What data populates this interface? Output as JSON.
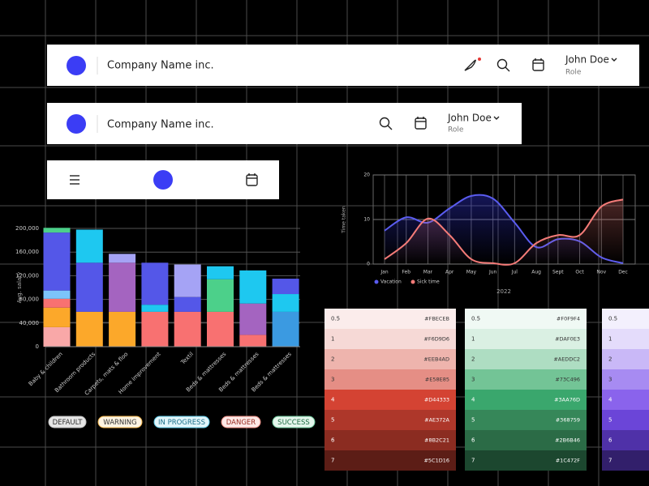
{
  "header_full": {
    "company": "Company Name inc.",
    "user": "John Doe",
    "role": "Role"
  },
  "header_compact": {
    "company": "Company Name inc.",
    "user": "John Doe",
    "role": "Role"
  },
  "chart_data": [
    {
      "type": "stacked_bar",
      "y_label": "Avg. salary",
      "categories": [
        "Baby & children",
        "Bathroom products",
        "Carpets, mats & floo",
        "Home improvement",
        "Textil",
        "Beds & mattresses",
        "Beds & mattresses",
        "Beds & mattresses"
      ],
      "series": [
        {
          "values": [
            33000,
            59000,
            59000,
            59000,
            59000,
            59000,
            20000,
            59000
          ],
          "colors": [
            "#f9a8a8",
            "#fca82a",
            "#fca82a",
            "#f87171",
            "#f87171",
            "#f87171",
            "#f87171",
            "#3b9ae1"
          ]
        },
        {
          "values": [
            33000,
            83000,
            83000,
            12000,
            25000,
            55000,
            53000,
            30000
          ],
          "colors": [
            "#fca82a",
            "#5457e8",
            "#a464c0",
            "#1ec8f0",
            "#5457e8",
            "#4cd08a",
            "#a464c0",
            "#1ec8f0"
          ]
        },
        {
          "values": [
            15000,
            56000,
            15000,
            71000,
            55000,
            22000,
            56000,
            26000
          ],
          "colors": [
            "#f87171",
            "#1ec8f0",
            "#a5a3f5",
            "#5457e8",
            "#a5a3f5",
            "#1ec8f0",
            "#1ec8f0",
            "#5457e8"
          ]
        },
        {
          "values": [
            14000,
            null,
            null,
            null,
            null,
            null,
            null,
            null
          ],
          "colors": [
            "#7cc4fa",
            null,
            null,
            null,
            null,
            null,
            null,
            null
          ]
        },
        {
          "values": [
            98000,
            null,
            null,
            null,
            null,
            null,
            null,
            null
          ],
          "colors": [
            "#5457e8",
            null,
            null,
            null,
            null,
            null,
            null,
            null
          ]
        },
        {
          "values": [
            8000,
            null,
            null,
            null,
            null,
            null,
            null,
            null
          ],
          "colors": [
            "#4cd08a",
            null,
            null,
            null,
            null,
            null,
            null,
            null
          ]
        }
      ],
      "ylim": [
        0,
        200000
      ],
      "yticks": [
        0,
        {
          "value": 40000,
          "label": "40,000"
        },
        {
          "value": 80000,
          "label": "80,000"
        },
        {
          "value": 120000,
          "label": "120,000"
        },
        {
          "value": 160000,
          "label": "160,000"
        },
        {
          "value": 200000,
          "label": "200,000"
        }
      ],
      "grid": true
    },
    {
      "type": "line",
      "y_label": "Time taken",
      "x_label": "2022",
      "categories": [
        "Jan",
        "Feb",
        "Mar",
        "Apr",
        "May",
        "Jun",
        "Jul",
        "Aug",
        "Sept",
        "Oct",
        "Nov",
        "Dec"
      ],
      "series": [
        {
          "name": "Vacation",
          "color": "#5a5cf0",
          "values": [
            7.5,
            10.5,
            9.3,
            12.5,
            15.3,
            14.7,
            9.3,
            3.8,
            5.6,
            5.1,
            1.5,
            0.2
          ]
        },
        {
          "name": "Sick time",
          "color": "#f47b78",
          "values": [
            1.1,
            4.7,
            10.2,
            6.5,
            1.1,
            0.2,
            0.2,
            4.7,
            6.5,
            6.5,
            12.9,
            14.5
          ]
        }
      ],
      "ylim": [
        0,
        20
      ],
      "yticks": [
        0,
        10,
        20
      ],
      "grid": true
    }
  ],
  "badges": [
    {
      "label": "DEFAULT",
      "bg": "#e6e6e6",
      "border": "#bdbdbd",
      "fg": "#333333"
    },
    {
      "label": "WARNING",
      "bg": "#fdf4e3",
      "border": "#f3b54a",
      "fg": "#333333"
    },
    {
      "label": "IN PROGRESS",
      "bg": "#e3f6fb",
      "border": "#5cc8e6",
      "fg": "#1b6f8a"
    },
    {
      "label": "DANGER",
      "bg": "#fde9e7",
      "border": "#ee8a80",
      "fg": "#9a2d22"
    },
    {
      "label": "SUCCESS",
      "bg": "#e4f6ec",
      "border": "#6cc79a",
      "fg": "#1f6b43"
    }
  ],
  "palettes": [
    {
      "steps": [
        0.5,
        1,
        2,
        3,
        4,
        5,
        6,
        7
      ],
      "hexes": [
        "#FBECEB",
        "#F6D9D6",
        "#EEB4AD",
        "#E58E85",
        "#D44333",
        "#AE372A",
        "#8B2C21",
        "#5C1D16"
      ]
    },
    {
      "steps": [
        0.5,
        1,
        2,
        3,
        4,
        5,
        6,
        7
      ],
      "hexes": [
        "#F0F9F4",
        "#DAF0E3",
        "#AEDDC2",
        "#73C496",
        "#3AA76D",
        "#368759",
        "#2B6B46",
        "#1C472F"
      ]
    },
    {
      "steps": [
        0.5,
        1,
        2,
        3,
        4,
        5,
        6,
        7
      ],
      "colors": [
        "#f3f0fd",
        "#e4dcfb",
        "#c9b8f7",
        "#a78bf2",
        "#8a63ec",
        "#6b45d8",
        "#4f31a8",
        "#321f6b"
      ]
    }
  ]
}
